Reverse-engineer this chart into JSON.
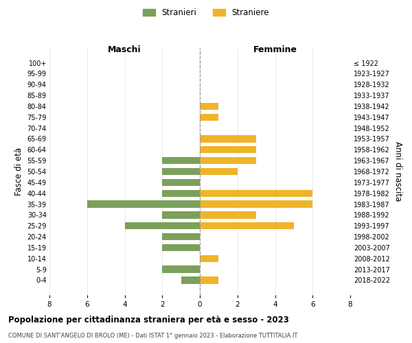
{
  "age_groups": [
    "100+",
    "95-99",
    "90-94",
    "85-89",
    "80-84",
    "75-79",
    "70-74",
    "65-69",
    "60-64",
    "55-59",
    "50-54",
    "45-49",
    "40-44",
    "35-39",
    "30-34",
    "25-29",
    "20-24",
    "15-19",
    "10-14",
    "5-9",
    "0-4"
  ],
  "birth_years": [
    "≤ 1922",
    "1923-1927",
    "1928-1932",
    "1933-1937",
    "1938-1942",
    "1943-1947",
    "1948-1952",
    "1953-1957",
    "1958-1962",
    "1963-1967",
    "1968-1972",
    "1973-1977",
    "1978-1982",
    "1983-1987",
    "1988-1992",
    "1993-1997",
    "1998-2002",
    "2003-2007",
    "2008-2012",
    "2013-2017",
    "2018-2022"
  ],
  "males": [
    0,
    0,
    0,
    0,
    0,
    0,
    0,
    0,
    0,
    2,
    2,
    2,
    2,
    6,
    2,
    4,
    2,
    2,
    0,
    2,
    1
  ],
  "females": [
    0,
    0,
    0,
    0,
    1,
    1,
    0,
    3,
    3,
    3,
    2,
    0,
    6,
    6,
    3,
    5,
    0,
    0,
    1,
    0,
    1
  ],
  "male_color": "#7ba05b",
  "female_color": "#f0b429",
  "center_line_color": "#999999",
  "grid_color": "#cccccc",
  "title": "Popolazione per cittadinanza straniera per età e sesso - 2023",
  "subtitle": "COMUNE DI SANT’ANGELO DI BROLO (ME) - Dati ISTAT 1° gennaio 2023 - Elaborazione TUTTITALIA.IT",
  "left_header": "Maschi",
  "right_header": "Femmine",
  "y_left_label": "Fasce di età",
  "y_right_label": "Anni di nascita",
  "legend_male": "Stranieri",
  "legend_female": "Straniere",
  "xlim": 8,
  "background_color": "#ffffff"
}
